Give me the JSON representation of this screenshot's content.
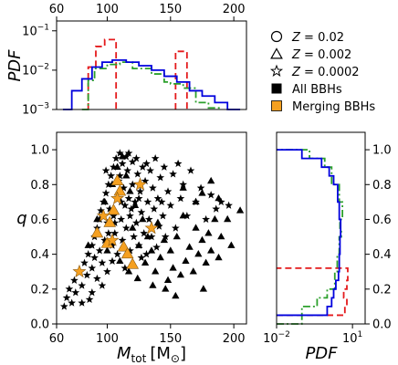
{
  "chart_data": [
    {
      "panel": "top-histogram",
      "type": "line",
      "ylabel": "PDF",
      "yscale": "log",
      "xlim": [
        60,
        210
      ],
      "ylim_exponents": [
        -3,
        -0.75
      ],
      "xticks": [
        "60",
        "100",
        "150",
        "200"
      ],
      "xtick_values": [
        60,
        100,
        150,
        200
      ],
      "yticks": [
        "10",
        "10",
        "10"
      ],
      "ytick_exponents": [
        "−3",
        "−2",
        "−1"
      ],
      "ytick_powers": [
        -3,
        -2,
        -1
      ],
      "series": [
        {
          "color": "#e41a1c",
          "dash": "7,4",
          "steps": [
            [
              85,
              91,
              0.012
            ],
            [
              91,
              98,
              0.04
            ],
            [
              98,
              107,
              0.06
            ],
            [
              154,
              163,
              0.03
            ]
          ]
        },
        {
          "color": "#2ca02c",
          "dash": "8,3,2,3",
          "steps": [
            [
              80,
              85,
              0.0009
            ],
            [
              85,
              90,
              0.0055
            ],
            [
              90,
              100,
              0.011
            ],
            [
              100,
              110,
              0.014
            ],
            [
              110,
              120,
              0.016
            ],
            [
              120,
              135,
              0.011
            ],
            [
              135,
              145,
              0.008
            ],
            [
              145,
              150,
              0.005
            ],
            [
              150,
              160,
              0.0045
            ],
            [
              160,
              170,
              0.0035
            ],
            [
              170,
              180,
              0.0015
            ],
            [
              180,
              190,
              0.0011
            ]
          ]
        },
        {
          "color": "#0000dd",
          "dash": "",
          "steps": [
            [
              65,
              72,
              0.001
            ],
            [
              72,
              80,
              0.003
            ],
            [
              80,
              88,
              0.006
            ],
            [
              88,
              96,
              0.012
            ],
            [
              96,
              104,
              0.016
            ],
            [
              104,
              115,
              0.018
            ],
            [
              115,
              125,
              0.016
            ],
            [
              125,
              135,
              0.013
            ],
            [
              135,
              145,
              0.01
            ],
            [
              145,
              155,
              0.007
            ],
            [
              155,
              165,
              0.005
            ],
            [
              165,
              175,
              0.003
            ],
            [
              175,
              185,
              0.0022
            ],
            [
              185,
              195,
              0.0015
            ],
            [
              195,
              205,
              0.001
            ]
          ]
        }
      ]
    },
    {
      "panel": "main-scatter",
      "type": "scatter",
      "xlabel_main": "M",
      "xlabel_sub": "tot",
      "xlabel_unit": "[M",
      "xlabel_unit_sub": "⊙",
      "xlabel_close": "]",
      "ylabel": "q",
      "xlim": [
        60,
        210
      ],
      "ylim": [
        0.0,
        1.1
      ],
      "xticks": [
        "60",
        "100",
        "150",
        "200"
      ],
      "xtick_values": [
        60,
        100,
        150,
        200
      ],
      "yticks": [
        "0.0",
        "0.2",
        "0.4",
        "0.6",
        "0.8",
        "1.0"
      ],
      "ytick_values": [
        0.0,
        0.2,
        0.4,
        0.6,
        0.8,
        1.0
      ],
      "all_bbhs_color": "#000000",
      "merging_color": "#f5a020",
      "all_bbhs_stars": [
        [
          66,
          0.1
        ],
        [
          68,
          0.15
        ],
        [
          70,
          0.2
        ],
        [
          72,
          0.12
        ],
        [
          74,
          0.25
        ],
        [
          75,
          0.18
        ],
        [
          78,
          0.3
        ],
        [
          80,
          0.22
        ],
        [
          82,
          0.35
        ],
        [
          84,
          0.28
        ],
        [
          85,
          0.4
        ],
        [
          86,
          0.14
        ],
        [
          88,
          0.45
        ],
        [
          88,
          0.32
        ],
        [
          90,
          0.5
        ],
        [
          90,
          0.38
        ],
        [
          92,
          0.55
        ],
        [
          92,
          0.26
        ],
        [
          94,
          0.6
        ],
        [
          94,
          0.42
        ],
        [
          95,
          0.65
        ],
        [
          96,
          0.35
        ],
        [
          97,
          0.7
        ],
        [
          98,
          0.48
        ],
        [
          99,
          0.75
        ],
        [
          100,
          0.58
        ],
        [
          100,
          0.3
        ],
        [
          101,
          0.8
        ],
        [
          102,
          0.66
        ],
        [
          103,
          0.85
        ],
        [
          104,
          0.45
        ],
        [
          105,
          0.9
        ],
        [
          105,
          0.62
        ],
        [
          106,
          0.52
        ],
        [
          107,
          0.95
        ],
        [
          108,
          0.72
        ],
        [
          108,
          0.4
        ],
        [
          110,
          0.98
        ],
        [
          110,
          0.85
        ],
        [
          111,
          0.6
        ],
        [
          112,
          0.92
        ],
        [
          112,
          0.48
        ],
        [
          113,
          0.78
        ],
        [
          114,
          0.68
        ],
        [
          115,
          0.96
        ],
        [
          115,
          0.55
        ],
        [
          116,
          0.88
        ],
        [
          117,
          0.72
        ],
        [
          118,
          0.62
        ],
        [
          118,
          0.42
        ],
        [
          120,
          0.93
        ],
        [
          120,
          0.8
        ],
        [
          121,
          0.5
        ],
        [
          122,
          0.7
        ],
        [
          123,
          0.58
        ],
        [
          124,
          0.86
        ],
        [
          125,
          0.45
        ],
        [
          126,
          0.76
        ],
        [
          127,
          0.64
        ],
        [
          128,
          0.9
        ],
        [
          129,
          0.52
        ],
        [
          130,
          0.82
        ],
        [
          131,
          0.4
        ],
        [
          132,
          0.7
        ],
        [
          133,
          0.6
        ],
        [
          134,
          0.88
        ],
        [
          135,
          0.5
        ],
        [
          136,
          0.78
        ],
        [
          137,
          0.66
        ],
        [
          138,
          0.95
        ],
        [
          140,
          0.72
        ],
        [
          141,
          0.56
        ],
        [
          142,
          0.84
        ],
        [
          144,
          0.62
        ],
        [
          145,
          0.9
        ],
        [
          146,
          0.5
        ],
        [
          148,
          0.76
        ],
        [
          150,
          0.68
        ],
        [
          152,
          0.86
        ],
        [
          154,
          0.55
        ],
        [
          156,
          0.92
        ],
        [
          158,
          0.72
        ],
        [
          160,
          0.8
        ],
        [
          163,
          0.62
        ],
        [
          166,
          0.88
        ],
        [
          170,
          0.7
        ],
        [
          174,
          0.78
        ],
        [
          178,
          0.6
        ],
        [
          182,
          0.74
        ],
        [
          186,
          0.66
        ],
        [
          190,
          0.7
        ],
        [
          196,
          0.68
        ],
        [
          104,
          0.36
        ],
        [
          114,
          0.32
        ],
        [
          96,
          0.22
        ],
        [
          88,
          0.18
        ],
        [
          80,
          0.12
        ],
        [
          106,
          0.58
        ],
        [
          119,
          0.66
        ],
        [
          127,
          0.38
        ],
        [
          139,
          0.44
        ],
        [
          101,
          0.52
        ],
        [
          109,
          0.82
        ],
        [
          117,
          0.98
        ],
        [
          123,
          0.95
        ],
        [
          131,
          0.92
        ],
        [
          99,
          0.88
        ],
        [
          111,
          0.7
        ],
        [
          125,
          0.72
        ],
        [
          143,
          0.7
        ]
      ],
      "all_bbhs_triangles": [
        [
          85,
          0.45
        ],
        [
          92,
          0.6
        ],
        [
          98,
          0.7
        ],
        [
          104,
          0.8
        ],
        [
          108,
          0.9
        ],
        [
          112,
          0.96
        ],
        [
          115,
          0.85
        ],
        [
          118,
          0.76
        ],
        [
          120,
          0.55
        ],
        [
          122,
          0.68
        ],
        [
          125,
          0.45
        ],
        [
          128,
          0.6
        ],
        [
          130,
          0.35
        ],
        [
          132,
          0.5
        ],
        [
          135,
          0.42
        ],
        [
          138,
          0.3
        ],
        [
          140,
          0.58
        ],
        [
          142,
          0.38
        ],
        [
          145,
          0.48
        ],
        [
          148,
          0.25
        ],
        [
          150,
          0.42
        ],
        [
          152,
          0.32
        ],
        [
          155,
          0.5
        ],
        [
          158,
          0.28
        ],
        [
          160,
          0.62
        ],
        [
          162,
          0.36
        ],
        [
          165,
          0.44
        ],
        [
          168,
          0.3
        ],
        [
          170,
          0.55
        ],
        [
          172,
          0.4
        ],
        [
          175,
          0.48
        ],
        [
          178,
          0.35
        ],
        [
          180,
          0.52
        ],
        [
          182,
          0.42
        ],
        [
          185,
          0.6
        ],
        [
          188,
          0.38
        ],
        [
          190,
          0.5
        ],
        [
          195,
          0.6
        ],
        [
          198,
          0.45
        ],
        [
          205,
          0.65
        ],
        [
          160,
          0.78
        ],
        [
          170,
          0.7
        ],
        [
          175,
          0.75
        ],
        [
          182,
          0.82
        ],
        [
          188,
          0.72
        ],
        [
          100,
          0.42
        ],
        [
          110,
          0.36
        ],
        [
          117,
          0.3
        ],
        [
          124,
          0.26
        ],
        [
          136,
          0.22
        ],
        [
          146,
          0.2
        ],
        [
          154,
          0.16
        ],
        [
          176,
          0.2
        ]
      ],
      "merging_triangles": [
        [
          108,
          0.82
        ],
        [
          110,
          0.76
        ],
        [
          105,
          0.65
        ],
        [
          102,
          0.58
        ],
        [
          92,
          0.52
        ],
        [
          100,
          0.46
        ],
        [
          113,
          0.44
        ],
        [
          116,
          0.4
        ],
        [
          120,
          0.34
        ]
      ],
      "merging_stars": [
        [
          78,
          0.3
        ],
        [
          97,
          0.62
        ],
        [
          108,
          0.72
        ],
        [
          126,
          0.8
        ],
        [
          135,
          0.55
        ],
        [
          104,
          0.48
        ]
      ]
    },
    {
      "panel": "right-histogram",
      "type": "line",
      "xlabel": "PDF",
      "xscale": "log",
      "xlim_exponents": [
        -2,
        1.5
      ],
      "xticks": [
        "10",
        "10"
      ],
      "xtick_exponents": [
        "−2",
        "1"
      ],
      "xtick_powers": [
        -2,
        1
      ],
      "ylim": [
        0.0,
        1.1
      ],
      "yticks": [
        "0.0",
        "0.2",
        "0.4",
        "0.6",
        "0.8",
        "1.0"
      ],
      "ytick_values": [
        0.0,
        0.2,
        0.4,
        0.6,
        0.8,
        1.0
      ],
      "series": [
        {
          "color": "#e41a1c",
          "dash": "7,4",
          "steps": [
            [
              0.05,
              0.1,
              5
            ],
            [
              0.1,
              0.15,
              6
            ],
            [
              0.15,
              0.2,
              4.5
            ],
            [
              0.2,
              0.25,
              6
            ],
            [
              0.25,
              0.32,
              6.5
            ]
          ]
        },
        {
          "color": "#2ca02c",
          "dash": "8,3,2,3",
          "steps": [
            [
              0.0,
              0.1,
              0.1
            ],
            [
              0.1,
              0.15,
              0.4
            ],
            [
              0.15,
              0.2,
              1.0
            ],
            [
              0.2,
              0.3,
              2.0
            ],
            [
              0.3,
              0.4,
              2.5
            ],
            [
              0.4,
              0.5,
              3.0
            ],
            [
              0.5,
              0.55,
              3.6
            ],
            [
              0.55,
              0.6,
              3.2
            ],
            [
              0.6,
              0.7,
              4.0
            ],
            [
              0.7,
              0.8,
              3.0
            ],
            [
              0.8,
              0.9,
              1.5
            ],
            [
              0.9,
              0.95,
              0.8
            ],
            [
              0.95,
              1.0,
              0.2
            ]
          ]
        },
        {
          "color": "#0000dd",
          "dash": "",
          "steps": [
            [
              0.05,
              0.1,
              1.0
            ],
            [
              0.1,
              0.15,
              1.5
            ],
            [
              0.15,
              0.2,
              1.8
            ],
            [
              0.2,
              0.25,
              2.2
            ],
            [
              0.25,
              0.3,
              2.8
            ],
            [
              0.3,
              0.4,
              3.0
            ],
            [
              0.4,
              0.5,
              3.2
            ],
            [
              0.5,
              0.6,
              3.4
            ],
            [
              0.6,
              0.7,
              3.0
            ],
            [
              0.7,
              0.8,
              2.6
            ],
            [
              0.8,
              0.85,
              1.8
            ],
            [
              0.85,
              0.9,
              1.2
            ],
            [
              0.9,
              0.95,
              0.6
            ],
            [
              0.95,
              1.0,
              0.1
            ]
          ]
        }
      ]
    }
  ],
  "legend": {
    "placement": "top-right",
    "items": [
      {
        "label_var": "Z",
        "label_val": " = 0.02",
        "marker": "circle-open"
      },
      {
        "label_var": "Z",
        "label_val": " = 0.002",
        "marker": "triangle-open"
      },
      {
        "label_var": "Z",
        "label_val": " = 0.0002",
        "marker": "star-open"
      },
      {
        "label": "All BBHs",
        "marker": "square-black"
      },
      {
        "label": "Merging BBHs",
        "marker": "square-orange"
      }
    ]
  }
}
